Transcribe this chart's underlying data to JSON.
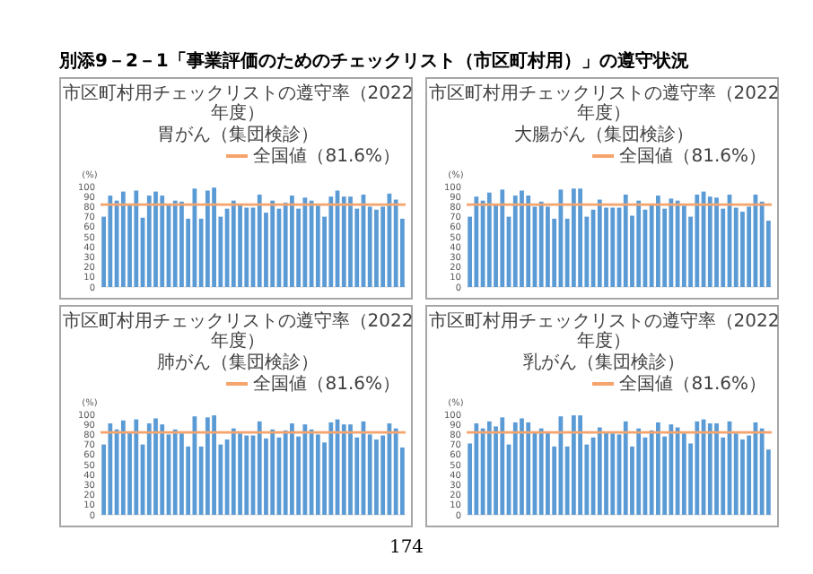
{
  "chart_data": [
    {
      "type": "bar",
      "title": "市区町村用チェックリストの遵守率（2022年度）",
      "subtitle": "胃がん（集団検診）",
      "ylabel": "(%)",
      "categories": [
        null,
        null,
        null,
        null,
        null,
        null,
        null,
        null,
        null,
        null,
        null,
        null,
        null,
        null,
        null,
        null,
        null,
        null,
        null,
        null,
        null,
        null,
        null,
        null,
        null,
        null,
        null,
        null,
        null,
        null,
        null,
        null,
        null,
        null,
        null,
        null,
        null,
        null,
        null,
        null,
        null,
        null,
        null,
        null,
        null,
        null,
        null
      ],
      "values": [
        70,
        91,
        86,
        95,
        83,
        96,
        69,
        91,
        95,
        91,
        82,
        86,
        85,
        68,
        98,
        68,
        96,
        99,
        70,
        78,
        86,
        82,
        79,
        79,
        92,
        74,
        86,
        78,
        84,
        91,
        78,
        89,
        86,
        81,
        70,
        90,
        96,
        90,
        90,
        78,
        92,
        80,
        77,
        80,
        93,
        87,
        68
      ],
      "color": "#5b9bd5",
      "ylim": [
        0,
        100
      ],
      "yticks": [
        0,
        10,
        20,
        30,
        40,
        50,
        60,
        70,
        80,
        90,
        100
      ],
      "ref_lines": [
        {
          "axis": "y",
          "value": 82,
          "label": "全国値（81.6%）",
          "color": "#f4a46c"
        }
      ],
      "legend": "top right",
      "annotations": [
        "別添9－2－1「事業評価のためのチェックリスト（市区町村用）」の遵守状況",
        "174"
      ]
    },
    {
      "type": "bar",
      "title": "市区町村用チェックリストの遵守率（2022年度）",
      "subtitle": "大腸がん（集団検診）",
      "ylabel": "(%)",
      "categories": [
        null,
        null,
        null,
        null,
        null,
        null,
        null,
        null,
        null,
        null,
        null,
        null,
        null,
        null,
        null,
        null,
        null,
        null,
        null,
        null,
        null,
        null,
        null,
        null,
        null,
        null,
        null,
        null,
        null,
        null,
        null,
        null,
        null,
        null,
        null,
        null,
        null,
        null,
        null,
        null,
        null,
        null,
        null,
        null,
        null,
        null,
        null
      ],
      "values": [
        70,
        90,
        86,
        94,
        83,
        97,
        70,
        91,
        96,
        91,
        80,
        85,
        80,
        68,
        97,
        68,
        98,
        98,
        70,
        77,
        87,
        79,
        79,
        79,
        92,
        71,
        86,
        77,
        83,
        91,
        78,
        88,
        86,
        81,
        70,
        92,
        95,
        90,
        89,
        78,
        92,
        79,
        75,
        80,
        92,
        85,
        66
      ],
      "color": "#5b9bd5",
      "ylim": [
        0,
        100
      ],
      "yticks": [
        0,
        10,
        20,
        30,
        40,
        50,
        60,
        70,
        80,
        90,
        100
      ],
      "ref_lines": [
        {
          "axis": "y",
          "value": 82,
          "label": "全国値（81.6%）",
          "color": "#f4a46c"
        }
      ],
      "legend": "top right"
    },
    {
      "type": "bar",
      "title": "市区町村用チェックリストの遵守率（2022年度）",
      "subtitle": "肺がん（集団検診）",
      "ylabel": "(%)",
      "categories": [
        null,
        null,
        null,
        null,
        null,
        null,
        null,
        null,
        null,
        null,
        null,
        null,
        null,
        null,
        null,
        null,
        null,
        null,
        null,
        null,
        null,
        null,
        null,
        null,
        null,
        null,
        null,
        null,
        null,
        null,
        null,
        null,
        null,
        null,
        null,
        null,
        null,
        null,
        null,
        null,
        null,
        null,
        null,
        null,
        null,
        null,
        null
      ],
      "values": [
        70,
        91,
        85,
        94,
        82,
        95,
        70,
        91,
        96,
        90,
        80,
        85,
        81,
        68,
        98,
        68,
        97,
        99,
        70,
        75,
        86,
        81,
        79,
        79,
        93,
        76,
        85,
        77,
        84,
        91,
        78,
        90,
        85,
        80,
        72,
        92,
        95,
        90,
        90,
        77,
        93,
        80,
        75,
        79,
        91,
        86,
        67
      ],
      "color": "#5b9bd5",
      "ylim": [
        0,
        100
      ],
      "yticks": [
        0,
        10,
        20,
        30,
        40,
        50,
        60,
        70,
        80,
        90,
        100
      ],
      "ref_lines": [
        {
          "axis": "y",
          "value": 82,
          "label": "全国値（81.6%）",
          "color": "#f4a46c"
        }
      ],
      "legend": "top right"
    },
    {
      "type": "bar",
      "title": "市区町村用チェックリストの遵守率（2022年度）",
      "subtitle": "乳がん（集団検診）",
      "ylabel": "(%)",
      "categories": [
        null,
        null,
        null,
        null,
        null,
        null,
        null,
        null,
        null,
        null,
        null,
        null,
        null,
        null,
        null,
        null,
        null,
        null,
        null,
        null,
        null,
        null,
        null,
        null,
        null,
        null,
        null,
        null,
        null,
        null,
        null,
        null,
        null,
        null,
        null,
        null,
        null,
        null,
        null,
        null,
        null,
        null,
        null,
        null,
        null,
        null,
        null
      ],
      "values": [
        71,
        91,
        86,
        93,
        88,
        97,
        70,
        92,
        96,
        92,
        82,
        86,
        82,
        68,
        98,
        68,
        99,
        99,
        70,
        77,
        87,
        83,
        81,
        80,
        93,
        68,
        86,
        77,
        84,
        92,
        78,
        90,
        87,
        81,
        71,
        93,
        95,
        91,
        91,
        77,
        93,
        81,
        75,
        79,
        92,
        86,
        65
      ],
      "color": "#5b9bd5",
      "ylim": [
        0,
        100
      ],
      "yticks": [
        0,
        10,
        20,
        30,
        40,
        50,
        60,
        70,
        80,
        90,
        100
      ],
      "ref_lines": [
        {
          "axis": "y",
          "value": 82,
          "label": "全国値（81.6%）",
          "color": "#f4a46c"
        }
      ],
      "legend": "top right"
    }
  ]
}
